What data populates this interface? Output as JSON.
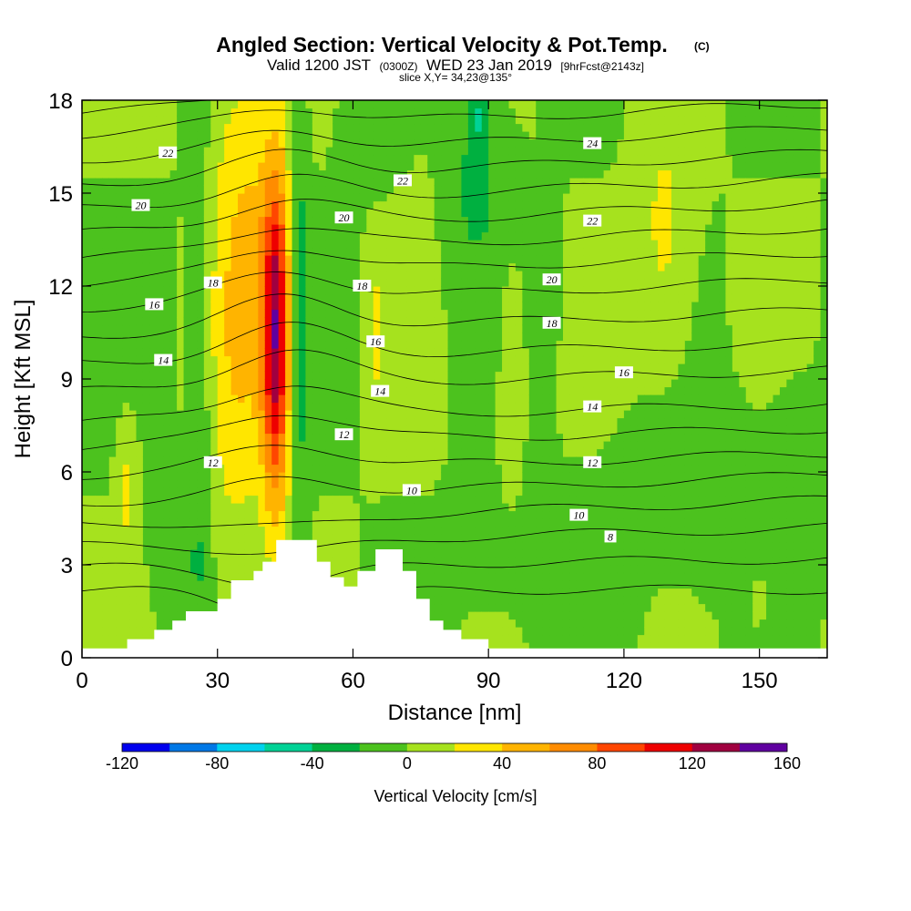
{
  "title": {
    "main": "Angled Section: Vertical Velocity & Pot.Temp.",
    "main_suffix": "(C)",
    "valid_a": "Valid 1200 JST",
    "valid_b": "(0300Z)",
    "valid_c": "WED 23 Jan 2019",
    "valid_d": "[9hrFcst@2143z]",
    "slice": "slice X,Y= 34,23@135°"
  },
  "chart_data": {
    "type": "heatmap",
    "xlabel": "Distance [nm]",
    "ylabel": "Height [Kft MSL]",
    "xlim": [
      0,
      165
    ],
    "ylim": [
      0,
      18
    ],
    "x_ticks": [
      {
        "value": 0,
        "label": "0"
      },
      {
        "value": 30,
        "label": "30"
      },
      {
        "value": 60,
        "label": "60"
      },
      {
        "value": 90,
        "label": "90"
      },
      {
        "value": 120,
        "label": "120"
      },
      {
        "value": 150,
        "label": "150"
      }
    ],
    "y_ticks": [
      {
        "value": 0,
        "label": "0"
      },
      {
        "value": 3,
        "label": "3"
      },
      {
        "value": 6,
        "label": "6"
      },
      {
        "value": 9,
        "label": "9"
      },
      {
        "value": 12,
        "label": "12"
      },
      {
        "value": 15,
        "label": "15"
      },
      {
        "value": 18,
        "label": "18"
      }
    ],
    "colorbar": {
      "title": "Vertical Velocity [cm/s]",
      "boundaries": [
        -120,
        -100,
        -80,
        -60,
        -40,
        -20,
        0,
        20,
        40,
        60,
        80,
        100,
        120,
        140,
        160
      ],
      "colors": [
        "#0000ee",
        "#0078e6",
        "#00d2ee",
        "#00d296",
        "#00b040",
        "#4cc21e",
        "#a6e21e",
        "#ffe600",
        "#ffb400",
        "#ff8c00",
        "#ff4600",
        "#ee0000",
        "#a00040",
        "#6000a0"
      ],
      "labels": [
        {
          "value": -120,
          "label": "-120"
        },
        {
          "value": -80,
          "label": "-80"
        },
        {
          "value": -40,
          "label": "-40"
        },
        {
          "value": 0,
          "label": "0"
        },
        {
          "value": 40,
          "label": "40"
        },
        {
          "value": 80,
          "label": "80"
        },
        {
          "value": 120,
          "label": "120"
        },
        {
          "value": 160,
          "label": "160"
        }
      ]
    },
    "background_velocity": 0,
    "velocity_features": [
      {
        "x": 43,
        "y": 10.5,
        "sx": 3.2,
        "sy": 5.5,
        "amp": 135
      },
      {
        "x": 38,
        "y": 12.5,
        "sx": 4.5,
        "sy": 6.5,
        "amp": 30
      },
      {
        "x": 33,
        "y": 11.5,
        "sx": 5,
        "sy": 9,
        "amp": 30
      },
      {
        "x": 48,
        "y": 11,
        "sx": 2.2,
        "sy": 7,
        "amp": -32
      },
      {
        "x": 26,
        "y": 8,
        "sx": 2.5,
        "sy": 9,
        "amp": -22
      },
      {
        "x": 20,
        "y": 3,
        "sx": 5,
        "sy": 2,
        "amp": -14
      },
      {
        "x": 10,
        "y": 5.5,
        "sx": 2.2,
        "sy": 2.2,
        "amp": 26
      },
      {
        "x": 65,
        "y": 10.5,
        "sx": 2,
        "sy": 2.5,
        "amp": 24
      },
      {
        "x": 76,
        "y": 12,
        "sx": 2.5,
        "sy": 4,
        "amp": 10
      },
      {
        "x": 87,
        "y": 15.5,
        "sx": 7,
        "sy": 3.5,
        "amp": -24
      },
      {
        "x": 88,
        "y": 17.5,
        "sx": 1.8,
        "sy": 1,
        "amp": -30
      },
      {
        "x": 62,
        "y": 17,
        "sx": 5,
        "sy": 2,
        "amp": -14
      },
      {
        "x": 95,
        "y": 9,
        "sx": 2.5,
        "sy": 3.5,
        "amp": 24
      },
      {
        "x": 104,
        "y": 14,
        "sx": 2,
        "sy": 5,
        "amp": -14
      },
      {
        "x": 129,
        "y": 13.5,
        "sx": 6,
        "sy": 4.5,
        "amp": 26
      },
      {
        "x": 140,
        "y": 5,
        "sx": 22,
        "sy": 3,
        "amp": -14
      },
      {
        "x": 158,
        "y": 7,
        "sx": 5,
        "sy": 2,
        "amp": -12
      },
      {
        "x": 97,
        "y": 3,
        "sx": 15,
        "sy": 2.5,
        "amp": -10
      },
      {
        "x": 150,
        "y": 2,
        "sx": 3,
        "sy": 1.5,
        "amp": 12
      }
    ],
    "terrain": [
      [
        0,
        0.3
      ],
      [
        10,
        0.3
      ],
      [
        10,
        0.6
      ],
      [
        16,
        0.6
      ],
      [
        16,
        0.9
      ],
      [
        20,
        0.9
      ],
      [
        20,
        1.2
      ],
      [
        23,
        1.2
      ],
      [
        23,
        1.5
      ],
      [
        30,
        1.5
      ],
      [
        30,
        1.9
      ],
      [
        33,
        1.9
      ],
      [
        33,
        2.5
      ],
      [
        38,
        2.5
      ],
      [
        38,
        2.8
      ],
      [
        40,
        2.8
      ],
      [
        40,
        3.1
      ],
      [
        43,
        3.1
      ],
      [
        43,
        3.8
      ],
      [
        52,
        3.8
      ],
      [
        52,
        3.1
      ],
      [
        55,
        3.1
      ],
      [
        55,
        2.6
      ],
      [
        58,
        2.6
      ],
      [
        58,
        2.3
      ],
      [
        61,
        2.3
      ],
      [
        61,
        2.8
      ],
      [
        65,
        2.8
      ],
      [
        65,
        3.5
      ],
      [
        71,
        3.5
      ],
      [
        71,
        2.8
      ],
      [
        74,
        2.8
      ],
      [
        74,
        1.9
      ],
      [
        77,
        1.9
      ],
      [
        77,
        1.2
      ],
      [
        80,
        1.2
      ],
      [
        80,
        0.9
      ],
      [
        84,
        0.9
      ],
      [
        84,
        0.6
      ],
      [
        90,
        0.6
      ],
      [
        90,
        0.3
      ],
      [
        165,
        0.3
      ]
    ],
    "isentropes": [
      {
        "theta": 6,
        "y0": 2.2,
        "dip": -0.9,
        "trend": 0.0
      },
      {
        "theta": 7,
        "y0": 2.9,
        "dip": -0.6,
        "trend": 0.3
      },
      {
        "theta": 8,
        "y0": 3.6,
        "dip": -0.4,
        "trend": 0.6
      },
      {
        "theta": 9,
        "y0": 4.3,
        "dip": -0.3,
        "trend": 0.8
      },
      {
        "theta": 10,
        "y0": 5.0,
        "dip": 0.5,
        "trend": 0.9
      },
      {
        "theta": 11,
        "y0": 5.9,
        "dip": 0.8,
        "trend": 0.7
      },
      {
        "theta": 12,
        "y0": 6.8,
        "dip": 1.0,
        "trend": 0.6
      },
      {
        "theta": 13,
        "y0": 7.6,
        "dip": 1.1,
        "trend": 0.6
      },
      {
        "theta": 14,
        "y0": 8.6,
        "dip": 1.1,
        "trend": 0.7
      },
      {
        "theta": 15,
        "y0": 9.5,
        "dip": 1.0,
        "trend": 0.7
      },
      {
        "theta": 16,
        "y0": 10.4,
        "dip": 1.0,
        "trend": 0.8
      },
      {
        "theta": 17,
        "y0": 11.3,
        "dip": 0.9,
        "trend": 0.9
      },
      {
        "theta": 18,
        "y0": 12.1,
        "dip": 0.9,
        "trend": 1.0
      },
      {
        "theta": 19,
        "y0": 12.9,
        "dip": 0.8,
        "trend": 1.0
      },
      {
        "theta": 20,
        "y0": 13.7,
        "dip": 0.8,
        "trend": 1.0
      },
      {
        "theta": 21,
        "y0": 14.5,
        "dip": 0.7,
        "trend": 1.0
      },
      {
        "theta": 22,
        "y0": 15.3,
        "dip": 0.7,
        "trend": 1.0
      },
      {
        "theta": 23,
        "y0": 16.1,
        "dip": 0.6,
        "trend": 1.0
      },
      {
        "theta": 24,
        "y0": 16.9,
        "dip": 0.6,
        "trend": 1.0
      },
      {
        "theta": 25,
        "y0": 17.6,
        "dip": 0.5,
        "trend": 1.0
      }
    ],
    "contour_labels": [
      {
        "text": "22",
        "x": 19,
        "y": 16.3
      },
      {
        "text": "20",
        "x": 13,
        "y": 14.6
      },
      {
        "text": "18",
        "x": 29,
        "y": 12.1
      },
      {
        "text": "16",
        "x": 16,
        "y": 11.4
      },
      {
        "text": "14",
        "x": 18,
        "y": 9.6
      },
      {
        "text": "12",
        "x": 29,
        "y": 6.3
      },
      {
        "text": "22",
        "x": 71,
        "y": 15.4
      },
      {
        "text": "20",
        "x": 58,
        "y": 14.2
      },
      {
        "text": "18",
        "x": 62,
        "y": 12.0
      },
      {
        "text": "16",
        "x": 65,
        "y": 10.2
      },
      {
        "text": "14",
        "x": 66,
        "y": 8.6
      },
      {
        "text": "12",
        "x": 58,
        "y": 7.2
      },
      {
        "text": "10",
        "x": 73,
        "y": 5.4
      },
      {
        "text": "24",
        "x": 113,
        "y": 16.6
      },
      {
        "text": "22",
        "x": 113,
        "y": 14.1
      },
      {
        "text": "20",
        "x": 104,
        "y": 12.2
      },
      {
        "text": "18",
        "x": 104,
        "y": 10.8
      },
      {
        "text": "16",
        "x": 120,
        "y": 9.2
      },
      {
        "text": "14",
        "x": 113,
        "y": 8.1
      },
      {
        "text": "12",
        "x": 113,
        "y": 6.3
      },
      {
        "text": "10",
        "x": 110,
        "y": 4.6
      },
      {
        "text": "8",
        "x": 117,
        "y": 3.9
      }
    ]
  }
}
